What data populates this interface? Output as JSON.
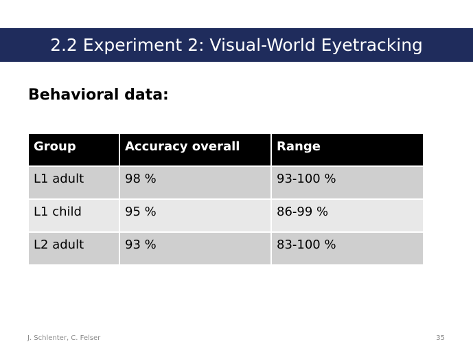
{
  "slide": {
    "title": "2.2 Experiment 2: Visual-World Eyetracking",
    "subtitle": "Behavioral data:",
    "colors": {
      "title_bar": "#1f2c5c",
      "header_bg": "#000000",
      "row_dark": "#cfcfcf",
      "row_light": "#e8e8e8"
    }
  },
  "table": {
    "headers": [
      "Group",
      "Accuracy overall",
      "Range"
    ],
    "rows": [
      [
        "L1 adult",
        "98 %",
        "93-100 %"
      ],
      [
        "L1 child",
        "95 %",
        "86-99 %"
      ],
      [
        "L2 adult",
        "93 %",
        "83-100 %"
      ]
    ]
  },
  "footer": {
    "authors": "J. Schlenter, C. Felser",
    "page_number": "35"
  }
}
